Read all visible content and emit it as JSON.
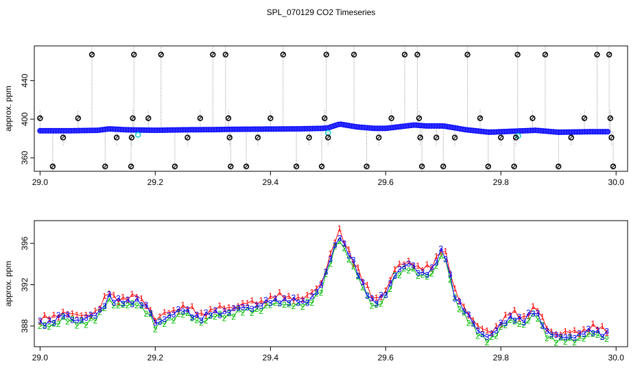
{
  "chart_data": [
    {
      "type": "scatter",
      "title": "SPL_070129  CO2 Timeseries",
      "xlabel": "",
      "ylabel": "approx. ppm",
      "xlim": [
        28.99,
        30.02
      ],
      "ylim": [
        346,
        476
      ],
      "xticks": [
        29.0,
        29.2,
        29.4,
        29.6,
        29.8,
        30.0
      ],
      "xtick_labels": [
        "29.0",
        "29.2",
        "29.4",
        "29.6",
        "29.8",
        "30.0"
      ],
      "yticks": [
        360,
        400,
        440
      ],
      "ytick_labels": [
        "360",
        "400",
        "440"
      ],
      "baseline": {
        "x": [
          29.0,
          29.05,
          29.1,
          29.12,
          29.15,
          29.2,
          29.25,
          29.3,
          29.33,
          29.4,
          29.45,
          29.49,
          29.5,
          29.52,
          29.55,
          29.58,
          29.6,
          29.65,
          29.67,
          29.7,
          29.74,
          29.78,
          29.82,
          29.86,
          29.9,
          29.95,
          29.99
        ],
        "y": [
          388,
          388,
          388.5,
          390,
          389,
          388.5,
          389,
          389.2,
          389.5,
          389.8,
          390,
          390.5,
          391,
          395,
          392,
          390.5,
          390.5,
          394,
          393,
          393,
          389,
          386.5,
          387.5,
          388.5,
          386.5,
          387,
          387
        ]
      },
      "spikes": [
        {
          "x": 29.0,
          "y": 401
        },
        {
          "x": 29.022,
          "y": 351
        },
        {
          "x": 29.04,
          "y": 381
        },
        {
          "x": 29.066,
          "y": 401
        },
        {
          "x": 29.09,
          "y": 467
        },
        {
          "x": 29.113,
          "y": 351
        },
        {
          "x": 29.133,
          "y": 381
        },
        {
          "x": 29.158,
          "y": 351
        },
        {
          "x": 29.159,
          "y": 381
        },
        {
          "x": 29.161,
          "y": 401
        },
        {
          "x": 29.163,
          "y": 467
        },
        {
          "x": 29.188,
          "y": 401
        },
        {
          "x": 29.21,
          "y": 467
        },
        {
          "x": 29.234,
          "y": 351
        },
        {
          "x": 29.256,
          "y": 381
        },
        {
          "x": 29.278,
          "y": 401
        },
        {
          "x": 29.3,
          "y": 467
        },
        {
          "x": 29.322,
          "y": 467
        },
        {
          "x": 29.327,
          "y": 401
        },
        {
          "x": 29.329,
          "y": 381
        },
        {
          "x": 29.331,
          "y": 351
        },
        {
          "x": 29.358,
          "y": 351
        },
        {
          "x": 29.378,
          "y": 381
        },
        {
          "x": 29.4,
          "y": 401
        },
        {
          "x": 29.422,
          "y": 467
        },
        {
          "x": 29.445,
          "y": 351
        },
        {
          "x": 29.467,
          "y": 381
        },
        {
          "x": 29.489,
          "y": 351
        },
        {
          "x": 29.494,
          "y": 401
        },
        {
          "x": 29.497,
          "y": 467
        },
        {
          "x": 29.5,
          "y": 381
        },
        {
          "x": 29.545,
          "y": 467
        },
        {
          "x": 29.567,
          "y": 351
        },
        {
          "x": 29.588,
          "y": 381
        },
        {
          "x": 29.61,
          "y": 401
        },
        {
          "x": 29.633,
          "y": 467
        },
        {
          "x": 29.655,
          "y": 467
        },
        {
          "x": 29.658,
          "y": 401
        },
        {
          "x": 29.66,
          "y": 381
        },
        {
          "x": 29.663,
          "y": 351
        },
        {
          "x": 29.688,
          "y": 381
        },
        {
          "x": 29.7,
          "y": 351
        },
        {
          "x": 29.72,
          "y": 381
        },
        {
          "x": 29.742,
          "y": 467
        },
        {
          "x": 29.764,
          "y": 401
        },
        {
          "x": 29.778,
          "y": 351
        },
        {
          "x": 29.8,
          "y": 381
        },
        {
          "x": 29.823,
          "y": 351
        },
        {
          "x": 29.826,
          "y": 381
        },
        {
          "x": 29.829,
          "y": 467
        },
        {
          "x": 29.855,
          "y": 401
        },
        {
          "x": 29.877,
          "y": 467
        },
        {
          "x": 29.9,
          "y": 351
        },
        {
          "x": 29.922,
          "y": 381
        },
        {
          "x": 29.945,
          "y": 401
        },
        {
          "x": 29.967,
          "y": 467
        },
        {
          "x": 29.988,
          "y": 467
        },
        {
          "x": 29.99,
          "y": 401
        },
        {
          "x": 29.992,
          "y": 381
        },
        {
          "x": 29.995,
          "y": 351
        }
      ],
      "colors": {
        "dots": "#0000ff",
        "dot_fill": "#3333ff",
        "spike_line": "#888888",
        "spike_marker": "#000000",
        "outlier": "#00cccc"
      }
    },
    {
      "type": "line",
      "title": "",
      "xlabel": "",
      "ylabel": "approx. ppm",
      "xlim": [
        28.99,
        30.02
      ],
      "ylim": [
        386.0,
        398.2
      ],
      "xticks": [
        29.0,
        29.2,
        29.4,
        29.6,
        29.8,
        30.0
      ],
      "xtick_labels": [
        "29.0",
        "29.2",
        "29.4",
        "29.6",
        "29.8",
        "30.0"
      ],
      "yticks": [
        388,
        392,
        396
      ],
      "ytick_labels": [
        "388",
        "392",
        "396"
      ],
      "series": [
        {
          "name": "1",
          "color": "#ff0000",
          "offset": 0.35
        },
        {
          "name": "2",
          "color": "#00bb00",
          "offset": -0.35
        },
        {
          "name": "3",
          "color": "#0000ff",
          "offset": 0.0
        }
      ],
      "x": [
        29.0,
        29.02,
        29.04,
        29.06,
        29.08,
        29.1,
        29.12,
        29.13,
        29.15,
        29.17,
        29.19,
        29.2,
        29.22,
        29.25,
        29.28,
        29.3,
        29.34,
        29.38,
        29.42,
        29.46,
        29.49,
        29.51,
        29.52,
        29.54,
        29.56,
        29.58,
        29.6,
        29.62,
        29.64,
        29.66,
        29.68,
        29.69,
        29.7,
        29.72,
        29.74,
        29.76,
        29.78,
        29.8,
        29.82,
        29.84,
        29.86,
        29.88,
        29.9,
        29.92,
        29.94,
        29.96,
        29.98
      ],
      "y": [
        388.2,
        388.5,
        389.0,
        388.6,
        388.8,
        389.0,
        391.0,
        390.4,
        390.2,
        390.6,
        389.5,
        388.1,
        389.0,
        389.5,
        388.8,
        389.2,
        389.6,
        390.0,
        390.6,
        390.2,
        392.0,
        395.5,
        396.8,
        394.5,
        392.0,
        390.2,
        391.0,
        393.5,
        394.0,
        393.0,
        393.5,
        394.5,
        395.5,
        391.0,
        389.2,
        387.5,
        387.0,
        388.0,
        389.0,
        388.5,
        389.5,
        387.5,
        386.8,
        387.0,
        387.2,
        387.5,
        387.3
      ]
    }
  ]
}
